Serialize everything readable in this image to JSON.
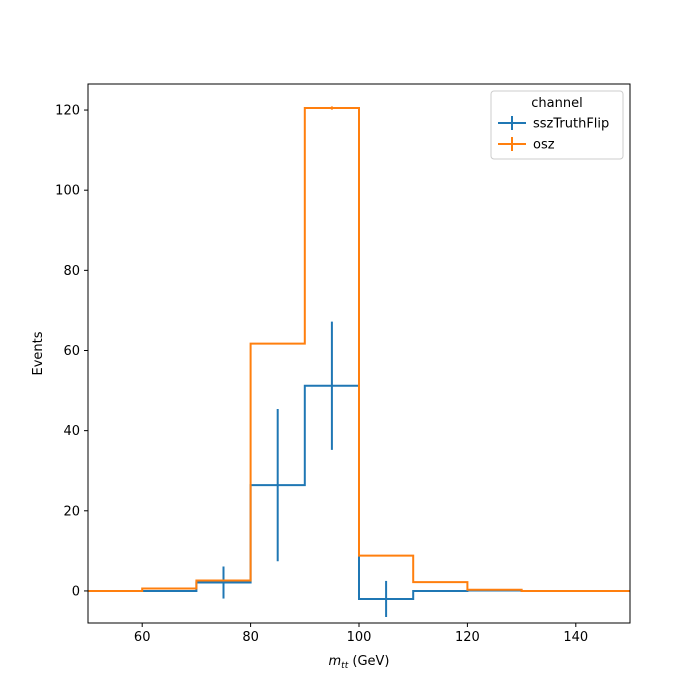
{
  "chart_data": {
    "type": "histogram",
    "title": "",
    "xlabel_main": "m",
    "xlabel_sub": "tt",
    "xlabel_unit": " (GeV)",
    "ylabel": "Events",
    "xlim": [
      50,
      150
    ],
    "ylim": [
      -8,
      126.5
    ],
    "xticks": [
      60,
      80,
      100,
      120,
      140
    ],
    "yticks": [
      0,
      20,
      40,
      60,
      80,
      100,
      120
    ],
    "bin_edges": [
      50,
      60,
      70,
      80,
      90,
      100,
      110,
      120,
      130,
      140,
      150
    ],
    "legend": {
      "title": "channel",
      "placement": "top-right"
    },
    "series": [
      {
        "name": "sszTruthFlip",
        "color": "#1f77b4",
        "values": [
          0,
          0,
          2.1,
          26.4,
          51.2,
          -2.0,
          0,
          0.1,
          0,
          0
        ],
        "errors": [
          0,
          0,
          4.0,
          19.0,
          16.0,
          4.5,
          0,
          0,
          0,
          0
        ]
      },
      {
        "name": "osz",
        "color": "#ff7f0e",
        "values": [
          0,
          0.6,
          2.6,
          61.7,
          120.5,
          8.8,
          2.2,
          0.3,
          0,
          0
        ],
        "errors": [
          0,
          0,
          0,
          0,
          0.4,
          0,
          0,
          0,
          0,
          0
        ]
      }
    ]
  }
}
